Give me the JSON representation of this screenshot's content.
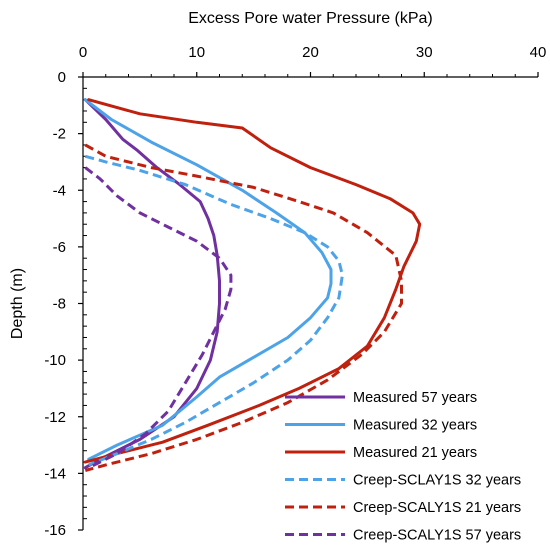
{
  "chart_data": {
    "type": "line",
    "title": "",
    "xlabel": "Excess Pore water Pressure (kPa)",
    "ylabel": "Depth (m)",
    "x_axis_position": "top",
    "xlim": [
      0,
      40
    ],
    "ylim": [
      -16,
      0
    ],
    "x_ticks": [
      0,
      10,
      20,
      30,
      40
    ],
    "y_ticks": [
      0,
      -2,
      -4,
      -6,
      -8,
      -10,
      -12,
      -14,
      -16
    ],
    "x_tick_labels": [
      "0",
      "10",
      "20",
      "30",
      "40"
    ],
    "y_tick_labels": [
      "0",
      "-2",
      "-4",
      "-6",
      "-8",
      "-10",
      "-12",
      "-14",
      "-16"
    ],
    "grid": false,
    "legend_position": "bottom-right",
    "series": [
      {
        "name": "Measured 57 years",
        "color": "#7030A0",
        "dash": "solid",
        "points": [
          [
            0.2,
            -0.8
          ],
          [
            2.0,
            -1.5
          ],
          [
            3.5,
            -2.2
          ],
          [
            4.8,
            -2.6
          ],
          [
            6.5,
            -3.2
          ],
          [
            8.5,
            -3.8
          ],
          [
            10.3,
            -4.4
          ],
          [
            11.0,
            -5.0
          ],
          [
            11.5,
            -5.6
          ],
          [
            11.8,
            -6.3
          ],
          [
            12.0,
            -7.2
          ],
          [
            12.0,
            -8.0
          ],
          [
            11.8,
            -9.0
          ],
          [
            11.2,
            -10.0
          ],
          [
            10.0,
            -11.0
          ],
          [
            8.0,
            -12.0
          ],
          [
            5.0,
            -12.8
          ],
          [
            1.5,
            -13.5
          ],
          [
            0.2,
            -13.8
          ]
        ]
      },
      {
        "name": "Measured  32 years",
        "color": "#4DA3E8",
        "dash": "solid",
        "points": [
          [
            0.2,
            -0.8
          ],
          [
            2.5,
            -1.5
          ],
          [
            6.0,
            -2.3
          ],
          [
            10.0,
            -3.1
          ],
          [
            14.0,
            -4.0
          ],
          [
            17.0,
            -4.8
          ],
          [
            19.5,
            -5.5
          ],
          [
            21.0,
            -6.2
          ],
          [
            21.8,
            -6.8
          ],
          [
            21.8,
            -7.3
          ],
          [
            21.5,
            -7.8
          ],
          [
            20.0,
            -8.5
          ],
          [
            18.0,
            -9.2
          ],
          [
            15.0,
            -9.9
          ],
          [
            12.0,
            -10.6
          ],
          [
            10.0,
            -11.3
          ],
          [
            7.0,
            -12.3
          ],
          [
            3.0,
            -13.0
          ],
          [
            0.5,
            -13.5
          ]
        ]
      },
      {
        "name": "Measured 21 years",
        "color": "#C0200E",
        "dash": "solid",
        "points": [
          [
            0.5,
            -0.8
          ],
          [
            5.0,
            -1.3
          ],
          [
            10.0,
            -1.6
          ],
          [
            14.0,
            -1.8
          ],
          [
            16.5,
            -2.5
          ],
          [
            20.0,
            -3.2
          ],
          [
            24.0,
            -3.8
          ],
          [
            27.0,
            -4.3
          ],
          [
            29.0,
            -4.8
          ],
          [
            29.6,
            -5.2
          ],
          [
            29.3,
            -5.8
          ],
          [
            28.2,
            -6.7
          ],
          [
            27.5,
            -7.5
          ],
          [
            26.5,
            -8.5
          ],
          [
            25.0,
            -9.5
          ],
          [
            22.5,
            -10.3
          ],
          [
            19.0,
            -11.0
          ],
          [
            15.5,
            -11.6
          ],
          [
            11.0,
            -12.3
          ],
          [
            7.0,
            -12.9
          ],
          [
            3.0,
            -13.3
          ],
          [
            0.2,
            -13.6
          ]
        ]
      },
      {
        "name": "Creep-SCLAY1S 32 years",
        "color": "#4DA3E8",
        "dash": "dashed",
        "points": [
          [
            0.2,
            -2.8
          ],
          [
            2.0,
            -3.0
          ],
          [
            5.0,
            -3.3
          ],
          [
            9.0,
            -3.8
          ],
          [
            13.0,
            -4.5
          ],
          [
            16.5,
            -5.0
          ],
          [
            19.5,
            -5.5
          ],
          [
            21.5,
            -6.0
          ],
          [
            22.5,
            -6.5
          ],
          [
            22.8,
            -7.0
          ],
          [
            22.5,
            -7.8
          ],
          [
            21.5,
            -8.5
          ],
          [
            20.0,
            -9.3
          ],
          [
            18.0,
            -10.0
          ],
          [
            15.0,
            -10.8
          ],
          [
            12.0,
            -11.5
          ],
          [
            9.0,
            -12.2
          ],
          [
            6.0,
            -12.8
          ],
          [
            3.0,
            -13.3
          ],
          [
            0.5,
            -13.7
          ]
        ]
      },
      {
        "name": "Creep-SCALY1S  21 years",
        "color": "#C0200E",
        "dash": "dashed",
        "points": [
          [
            0.2,
            -2.4
          ],
          [
            2.0,
            -2.8
          ],
          [
            6.0,
            -3.2
          ],
          [
            10.0,
            -3.5
          ],
          [
            15.0,
            -3.9
          ],
          [
            19.0,
            -4.4
          ],
          [
            22.0,
            -4.8
          ],
          [
            25.0,
            -5.5
          ],
          [
            27.5,
            -6.3
          ],
          [
            28.0,
            -7.2
          ],
          [
            28.0,
            -8.0
          ],
          [
            26.5,
            -9.0
          ],
          [
            24.5,
            -9.8
          ],
          [
            21.5,
            -10.7
          ],
          [
            18.0,
            -11.5
          ],
          [
            14.0,
            -12.2
          ],
          [
            10.0,
            -12.8
          ],
          [
            6.0,
            -13.3
          ],
          [
            2.0,
            -13.7
          ],
          [
            0.2,
            -13.9
          ]
        ]
      },
      {
        "name": "Creep-SCALY1S 57 years",
        "color": "#7030A0",
        "dash": "dashed",
        "points": [
          [
            0.2,
            -3.2
          ],
          [
            1.5,
            -3.6
          ],
          [
            3.0,
            -4.2
          ],
          [
            5.0,
            -4.8
          ],
          [
            7.5,
            -5.3
          ],
          [
            10.0,
            -5.8
          ],
          [
            12.0,
            -6.4
          ],
          [
            13.0,
            -7.0
          ],
          [
            13.0,
            -7.5
          ],
          [
            12.5,
            -8.2
          ],
          [
            11.5,
            -9.0
          ],
          [
            10.5,
            -9.8
          ],
          [
            9.0,
            -10.8
          ],
          [
            7.5,
            -11.8
          ],
          [
            5.5,
            -12.6
          ],
          [
            3.0,
            -13.3
          ],
          [
            0.5,
            -13.8
          ]
        ]
      }
    ]
  }
}
